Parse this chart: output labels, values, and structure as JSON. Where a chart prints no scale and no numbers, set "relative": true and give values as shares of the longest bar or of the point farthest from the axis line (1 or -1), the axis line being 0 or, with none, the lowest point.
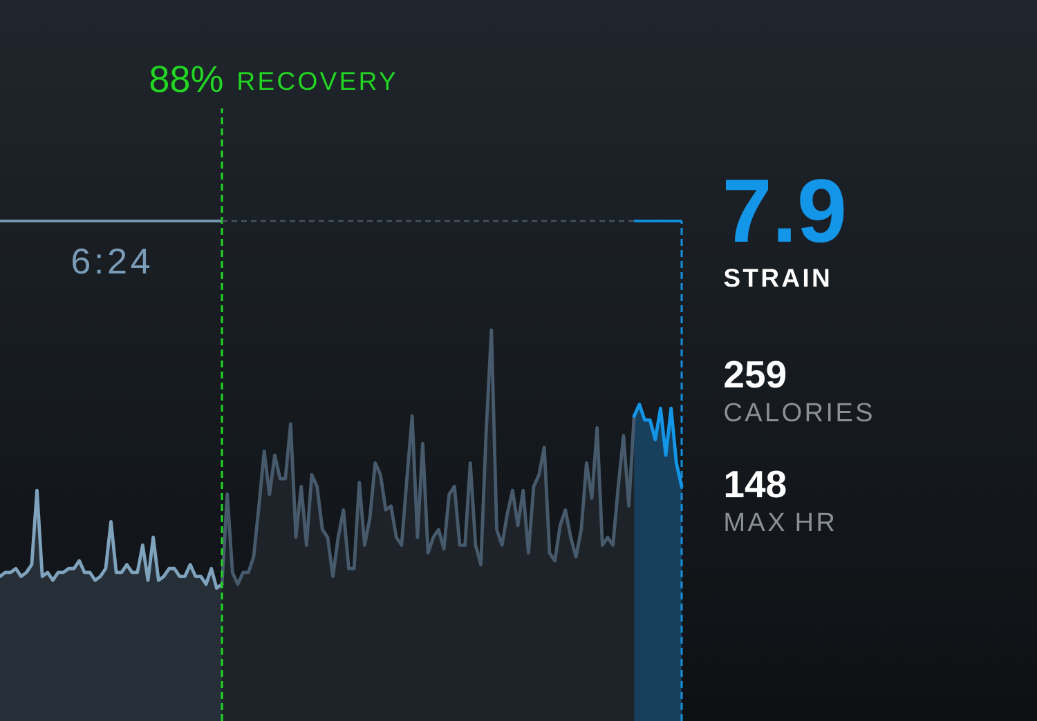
{
  "chart_data": {
    "type": "area",
    "relative": true,
    "categories": [
      null,
      null,
      null,
      null,
      null,
      null,
      null,
      null,
      null,
      null,
      null,
      null,
      null,
      null,
      null,
      null,
      null,
      null,
      null,
      null,
      null,
      null,
      null,
      null,
      null,
      null,
      null,
      null,
      null,
      null,
      null,
      null,
      null,
      null,
      null,
      null,
      null,
      null,
      null,
      null,
      null,
      null,
      null,
      null,
      null,
      null,
      null,
      null,
      null,
      null,
      null,
      null,
      null,
      null,
      null,
      null,
      null,
      null,
      null,
      null,
      null,
      null,
      null,
      null,
      null,
      null,
      null,
      null,
      null,
      null,
      null,
      null,
      null,
      null,
      null,
      null,
      null,
      null,
      null,
      null,
      null,
      null,
      null,
      null,
      null,
      null,
      null,
      null,
      null,
      null,
      null,
      null,
      null,
      null,
      null,
      null,
      null,
      null,
      null,
      null,
      null,
      null,
      null,
      null,
      null,
      null,
      null,
      null,
      null,
      null,
      null,
      null,
      null,
      null,
      null,
      null,
      null,
      null,
      null,
      null,
      null,
      null,
      null,
      null,
      null,
      null,
      null,
      null,
      null,
      null
    ],
    "series": [
      {
        "color": "#7fa2bd",
        "values": [
          0.37,
          0.38,
          0.38,
          0.39,
          0.37,
          0.38,
          0.4,
          0.59,
          0.37,
          0.38,
          0.36,
          0.38,
          0.38,
          0.39,
          0.39,
          0.41,
          0.38,
          0.38,
          0.36,
          0.37,
          0.39,
          0.51,
          0.38,
          0.38,
          0.4,
          0.38,
          0.38,
          0.45,
          0.36,
          0.47,
          0.36,
          0.37,
          0.39,
          0.39,
          0.37,
          0.37,
          0.4,
          0.37,
          0.37,
          0.35,
          0.39,
          0.34,
          0.35,
          null,
          null,
          null,
          null,
          null,
          null,
          null,
          null,
          null,
          null,
          null,
          null,
          null,
          null,
          null,
          null,
          null,
          null,
          null,
          null,
          null,
          null,
          null,
          null,
          null,
          null,
          null,
          null,
          null,
          null,
          null,
          null,
          null,
          null,
          null,
          null,
          null,
          null,
          null,
          null,
          null,
          null,
          null,
          null,
          null,
          null,
          null,
          null,
          null,
          null,
          null,
          null,
          null,
          null,
          null,
          null,
          null,
          null,
          null,
          null,
          null,
          null,
          null,
          null,
          null,
          null,
          null,
          null,
          null,
          null,
          null,
          null,
          null,
          null,
          null,
          null,
          null,
          null,
          null,
          null,
          null,
          null,
          null,
          null,
          null,
          null,
          null
        ]
      },
      {
        "color": "#475a6c",
        "values": [
          null,
          null,
          null,
          null,
          null,
          null,
          null,
          null,
          null,
          null,
          null,
          null,
          null,
          null,
          null,
          null,
          null,
          null,
          null,
          null,
          null,
          null,
          null,
          null,
          null,
          null,
          null,
          null,
          null,
          null,
          null,
          null,
          null,
          null,
          null,
          null,
          null,
          null,
          null,
          null,
          null,
          null,
          0.35,
          0.58,
          0.38,
          0.35,
          0.38,
          0.38,
          0.42,
          0.55,
          0.69,
          0.58,
          0.68,
          0.62,
          0.62,
          0.76,
          0.47,
          0.6,
          0.45,
          0.63,
          0.6,
          0.49,
          0.47,
          0.37,
          0.47,
          0.54,
          0.39,
          0.39,
          0.61,
          0.45,
          0.52,
          0.66,
          0.63,
          0.54,
          0.55,
          0.47,
          0.45,
          0.62,
          0.78,
          0.47,
          0.71,
          0.43,
          0.47,
          0.49,
          0.44,
          0.58,
          0.6,
          0.45,
          0.45,
          0.66,
          0.45,
          0.4,
          0.74,
          1,
          0.49,
          0.45,
          0.53,
          0.59,
          0.5,
          0.59,
          0.43,
          0.6,
          0.63,
          0.7,
          0.43,
          0.41,
          0.5,
          0.54,
          0.47,
          0.42,
          0.49,
          0.66,
          0.57,
          0.75,
          0.45,
          0.47,
          0.45,
          0.6,
          0.73,
          0.55,
          0.78,
          null,
          null,
          null,
          null,
          null,
          null,
          null,
          null,
          null
        ]
      },
      {
        "color": "#1496e8",
        "values": [
          null,
          null,
          null,
          null,
          null,
          null,
          null,
          null,
          null,
          null,
          null,
          null,
          null,
          null,
          null,
          null,
          null,
          null,
          null,
          null,
          null,
          null,
          null,
          null,
          null,
          null,
          null,
          null,
          null,
          null,
          null,
          null,
          null,
          null,
          null,
          null,
          null,
          null,
          null,
          null,
          null,
          null,
          null,
          null,
          null,
          null,
          null,
          null,
          null,
          null,
          null,
          null,
          null,
          null,
          null,
          null,
          null,
          null,
          null,
          null,
          null,
          null,
          null,
          null,
          null,
          null,
          null,
          null,
          null,
          null,
          null,
          null,
          null,
          null,
          null,
          null,
          null,
          null,
          null,
          null,
          null,
          null,
          null,
          null,
          null,
          null,
          null,
          null,
          null,
          null,
          null,
          null,
          null,
          null,
          null,
          null,
          null,
          null,
          null,
          null,
          null,
          null,
          null,
          null,
          null,
          null,
          null,
          null,
          null,
          null,
          null,
          null,
          null,
          null,
          null,
          null,
          null,
          null,
          null,
          null,
          0.78,
          0.81,
          0.77,
          0.77,
          0.72,
          0.8,
          0.68,
          0.8,
          0.66,
          0.6
        ]
      }
    ],
    "annotations": [
      "88%",
      "RECOVERY",
      "6:24",
      "7.9",
      "STRAIN",
      "259",
      "CALORIES",
      "148",
      "MAX HR"
    ]
  }
}
